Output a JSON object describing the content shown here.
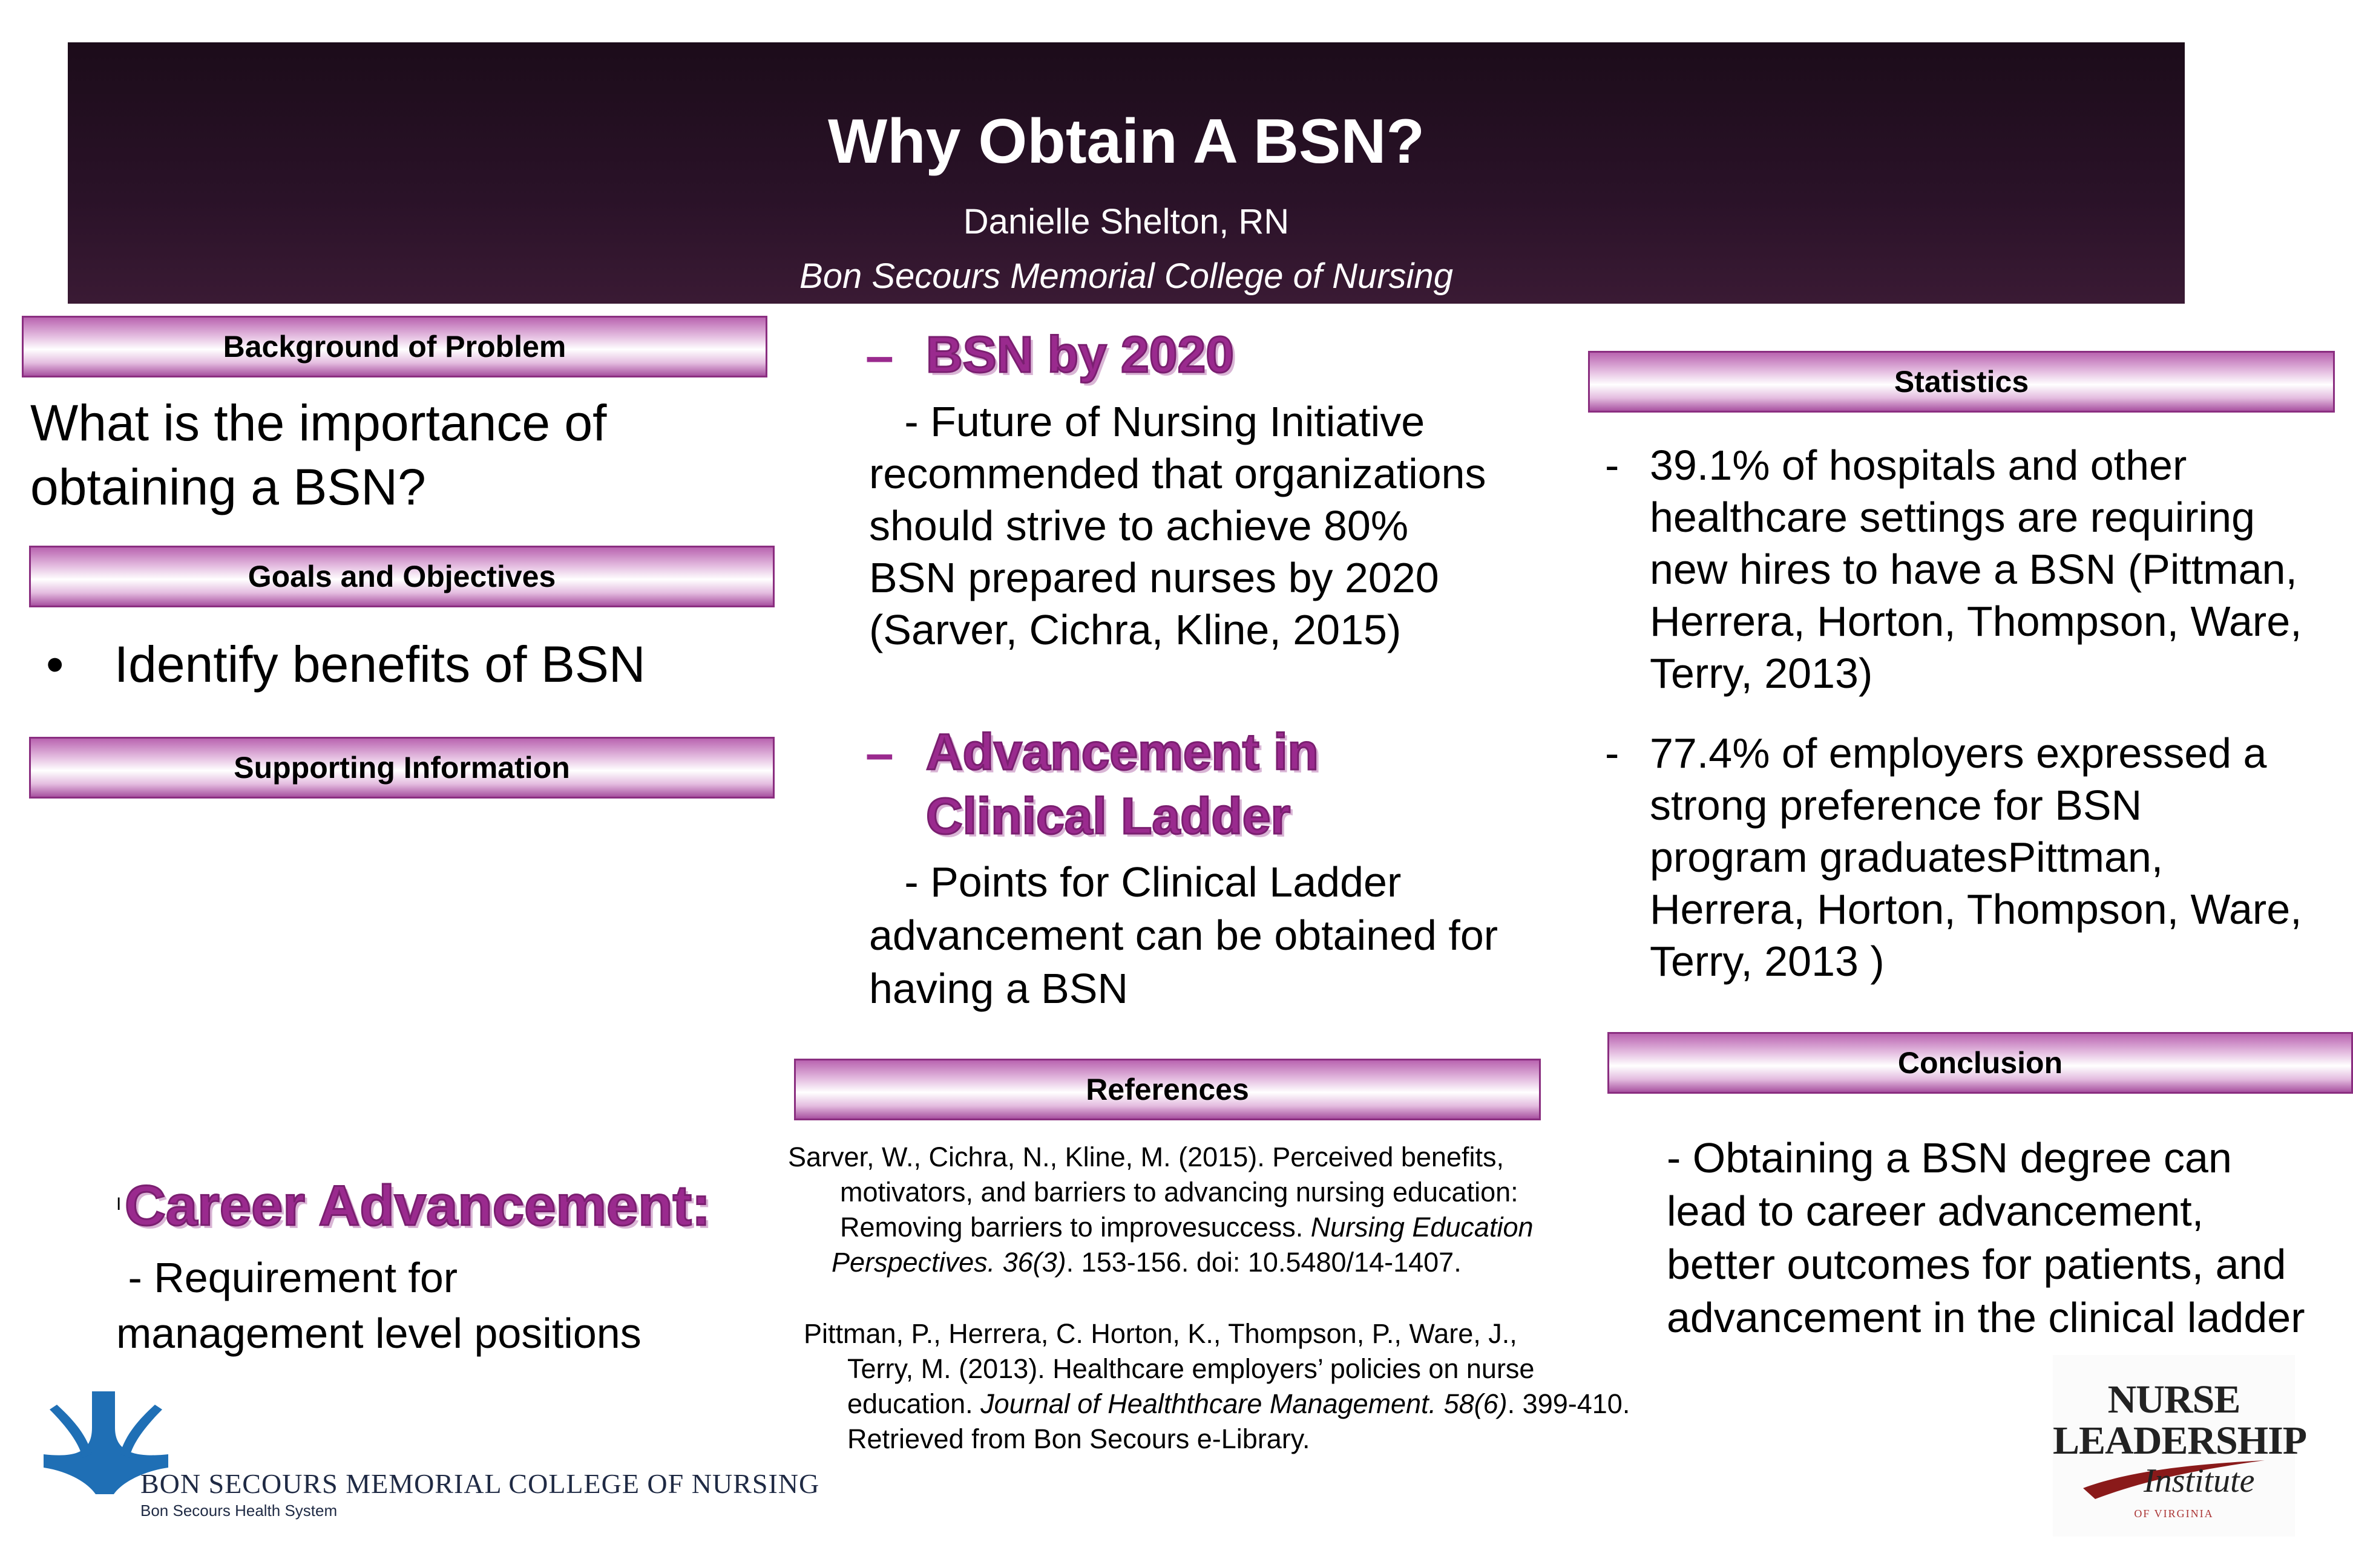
{
  "banner": {
    "title": "Why Obtain A BSN?",
    "author": "Danielle Shelton, RN",
    "college": "Bon Secours Memorial College of Nursing"
  },
  "left": {
    "background_header": "Background of Problem",
    "background_text_1": "What is the importance of",
    "background_text_2": "obtaining a BSN?",
    "goals_header": "Goals and Objectives",
    "goals_bullet": "•",
    "goals_item": "Identify benefits of BSN",
    "supporting_header": "Supporting Information",
    "career_marker": "I",
    "career_head": "Career Advancement:",
    "career_text_1": " - Requirement for",
    "career_text_2": "management level positions"
  },
  "middle": {
    "bsn_dash": "–",
    "bsn_head": "BSN by 2020",
    "bsn_text": [
      "   - Future of Nursing Initiative",
      "recommended that organizations",
      "should strive to achieve 80%",
      "BSN prepared nurses by 2020",
      "(Sarver, Cichra, Kline, 2015)"
    ],
    "ladder_dash": "–",
    "ladder_head_1": "Advancement in",
    "ladder_head_2": "Clinical Ladder",
    "ladder_text": [
      "   - Points for Clinical Ladder",
      "advancement can be obtained for",
      "having a BSN"
    ],
    "references_header": "References",
    "ref1": {
      "line1": "Sarver, W., Cichra, N., Kline, M. (2015). Perceived benefits,",
      "line2": "motivators, and barriers to advancing nursing education:",
      "line3a": "Removing barriers to improvesuccess. ",
      "line3b": "Nursing Education",
      "line4a": "Perspectives. 36(3)",
      "line4b": ". 153-156. doi: 10.5480/14-1407."
    },
    "ref2": {
      "line1": "Pittman, P., Herrera, C. Horton, K., Thompson, P., Ware, J.,",
      "line2": "Terry, M. (2013). Healthcare employers’ policies on nurse",
      "line3a": "education. ",
      "line3b": "Journal of Healththcare Management. 58(6)",
      "line3c": ". 399-410.",
      "line4": "Retrieved from Bon Secours e-Library."
    }
  },
  "right": {
    "stats_header": "Statistics",
    "stat1_dash": "-",
    "stat1": [
      "39.1% of  hospitals and other",
      "healthcare settings are requiring",
      "new hires to have a BSN (Pittman,",
      "Herrera, Horton, Thompson, Ware,",
      "Terry, 2013)"
    ],
    "stat2_dash": "-",
    "stat2": [
      "77.4% of employers expressed a",
      "strong preference for BSN",
      "program graduatesPittman,",
      "Herrera, Horton, Thompson, Ware,",
      "Terry, 2013 )"
    ],
    "conclusion_header": "Conclusion",
    "conclusion": [
      "- Obtaining a BSN degree can",
      "lead to career advancement,",
      "better outcomes for patients, and",
      "advancement in the clinical ladder"
    ]
  },
  "logos": {
    "bon_secours_name": "BON SECOURS MEMORIAL COLLEGE OF NURSING",
    "bon_secours_sub": "Bon Secours Health System",
    "nli_line1": "NURSE",
    "nli_line2": "LEADERSHIP",
    "nli_line3": "Institute",
    "nli_line4": "OF VIRGINIA"
  },
  "colors": {
    "banner": "#2a1228",
    "accent_purple": "#9a2a8e",
    "bon_secours_blue": "#1f6fb5"
  }
}
